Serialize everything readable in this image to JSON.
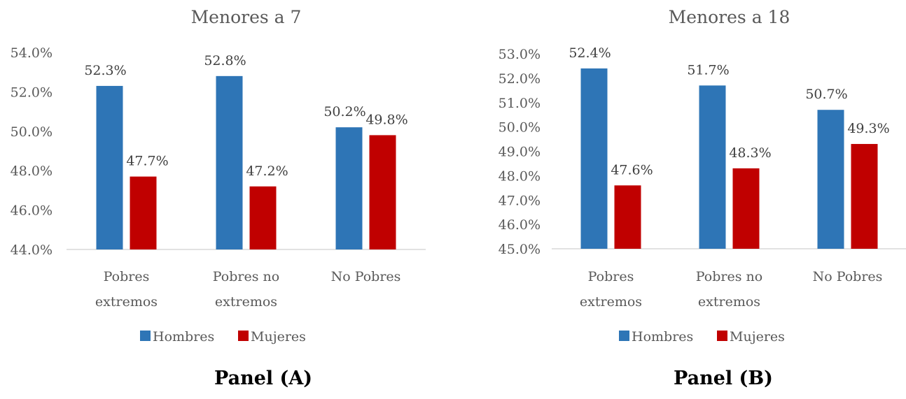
{
  "colors": {
    "Hombres": "#2E75B6",
    "Mujeres": "#C00000",
    "axis": "#D9D9D9"
  },
  "panels": [
    {
      "label": "Panel (A)"
    },
    {
      "label": "Panel (B)"
    }
  ],
  "chart_data": [
    {
      "type": "bar",
      "title": "Menores a 7",
      "categories": [
        [
          "Pobres",
          "extremos"
        ],
        [
          "Pobres no",
          "extremos"
        ],
        [
          "No Pobres"
        ]
      ],
      "series": [
        {
          "name": "Hombres",
          "values": [
            52.3,
            52.8,
            50.2
          ],
          "labels": [
            "52.3%",
            "52.8%",
            "50.2%"
          ]
        },
        {
          "name": "Mujeres",
          "values": [
            47.7,
            47.2,
            49.8
          ],
          "labels": [
            "47.7%",
            "47.2%",
            "49.8%"
          ]
        }
      ],
      "yticks": [
        "54.0%",
        "52.0%",
        "50.0%",
        "48.0%",
        "46.0%",
        "44.0%"
      ],
      "ylim": [
        44,
        54
      ],
      "legend": "bottom"
    },
    {
      "type": "bar",
      "title": "Menores a 18",
      "categories": [
        [
          "Pobres",
          "extremos"
        ],
        [
          "Pobres  no",
          "extremos"
        ],
        [
          "No Pobres"
        ]
      ],
      "series": [
        {
          "name": "Hombres",
          "values": [
            52.4,
            51.7,
            50.7
          ],
          "labels": [
            "52.4%",
            "51.7%",
            "50.7%"
          ]
        },
        {
          "name": "Mujeres",
          "values": [
            47.6,
            48.3,
            49.3
          ],
          "labels": [
            "47.6%",
            "48.3%",
            "49.3%"
          ]
        }
      ],
      "yticks": [
        "53.0%",
        "52.0%",
        "51.0%",
        "50.0%",
        "49.0%",
        "48.0%",
        "47.0%",
        "46.0%",
        "45.0%"
      ],
      "ylim": [
        45,
        53
      ],
      "legend": "bottom"
    }
  ]
}
